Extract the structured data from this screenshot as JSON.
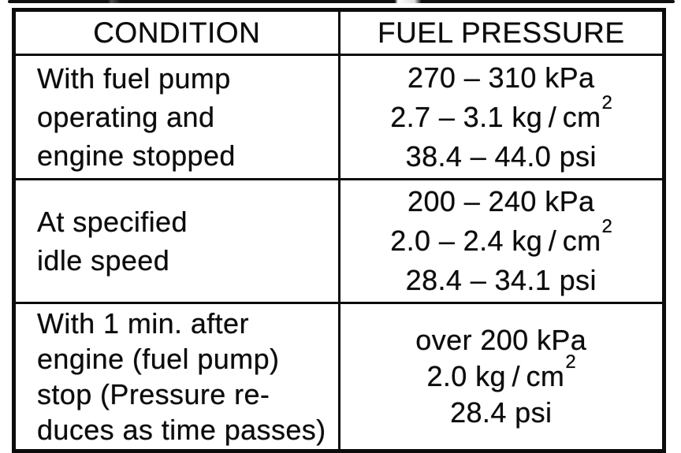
{
  "colors": {
    "ink": "#0c0c0c",
    "paper": "#ffffff"
  },
  "table": {
    "headers": {
      "condition": "CONDITION",
      "fuel_pressure": "FUEL PRESSURE"
    },
    "rows": [
      {
        "condition_lines": [
          "With fuel pump",
          "operating and",
          "engine stopped"
        ],
        "pressure_kpa": "270 – 310 kPa",
        "pressure_kgcm_base": "2.7 – 3.1 kg / cm",
        "pressure_kgcm_sup": "2",
        "pressure_psi": "38.4 – 44.0 psi"
      },
      {
        "condition_lines": [
          "At specified",
          "idle speed"
        ],
        "pressure_kpa": "200 – 240 kPa",
        "pressure_kgcm_base": "2.0 – 2.4 kg / cm",
        "pressure_kgcm_sup": "2",
        "pressure_psi": "28.4 – 34.1 psi"
      },
      {
        "condition_lines": [
          "With 1 min. after",
          "engine (fuel pump)",
          "stop (Pressure re-",
          "duces as time passes)"
        ],
        "pressure_kpa": "over 200 kPa",
        "pressure_kgcm_base": "2.0 kg / cm",
        "pressure_kgcm_sup": "2",
        "pressure_psi": "28.4 psi"
      }
    ]
  }
}
